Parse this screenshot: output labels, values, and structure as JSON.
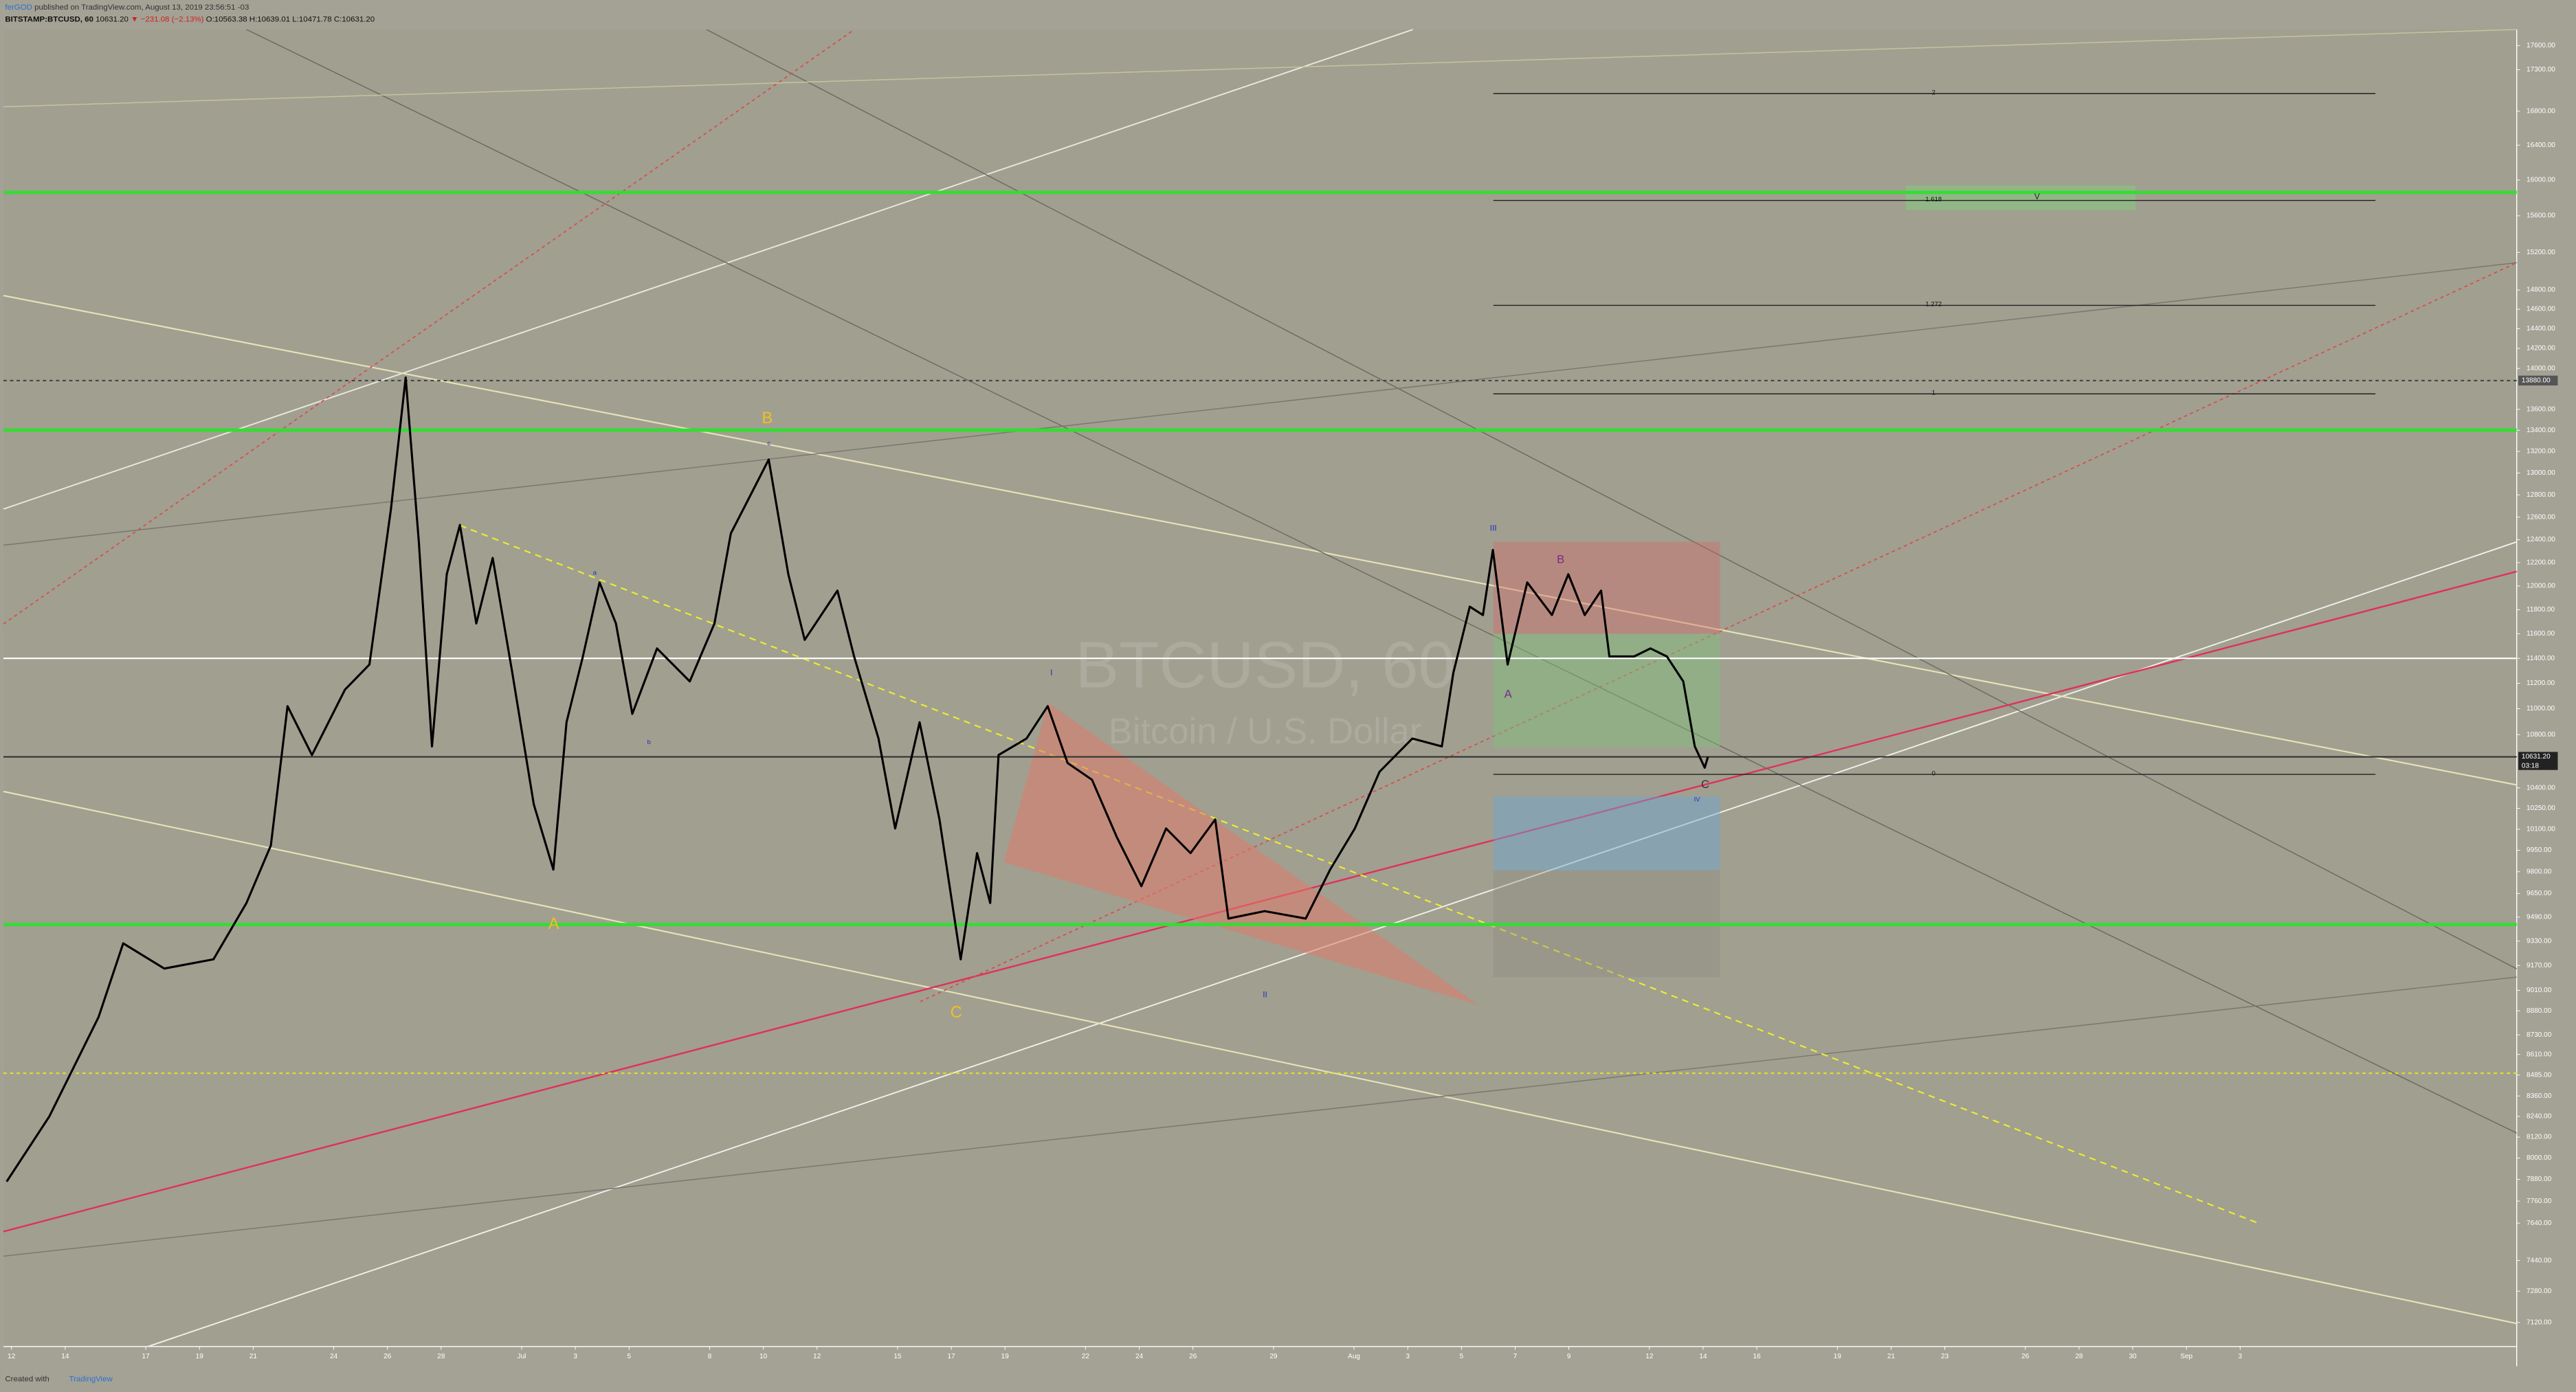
{
  "header": {
    "author": "ferGOD",
    "published": " published on TradingView.com, August 13, 2019 23:56:51 -03",
    "symbol": "BITSTAMP:BTCUSD, 60",
    "last": "10631.20",
    "change": "▼ −231.08 (−2.13%)",
    "ohlc": "O:10563.38 H:10639.01 L:10471.78 C:10631.20"
  },
  "footer": {
    "created": "Created with",
    "brand": "TradingView"
  },
  "watermark": {
    "symbol": "BTCUSD, 60",
    "description": "Bitcoin / U.S. Dollar"
  },
  "chart_data": {
    "type": "line",
    "log_scale": true,
    "x": [
      11.82,
      13.41,
      15.24,
      16.16,
      17.69,
      19.52,
      20.75,
      21.66,
      22.28,
      23.19,
      24.42,
      25.33,
      26.13,
      26.68,
      27.17,
      27.66,
      28.21,
      28.7,
      29.31,
      29.92,
      30.65,
      31.45,
      32.18,
      32.67,
      33.28,
      33.9,
      34.51,
      35.12,
      36.04,
      37.26,
      38.18,
      38.79,
      39.58,
      40.2,
      40.93,
      41.54,
      42.76,
      43.38,
      44.29,
      44.91,
      45.82,
      46.56,
      47.35,
      47.96,
      48.45,
      48.76,
      49.8,
      50.59,
      51.33,
      52.24,
      53.16,
      54.08,
      55.0,
      55.91,
      56.83,
      57.32,
      58.67,
      60.2,
      61.11,
      62.03,
      62.95,
      64.17,
      65.27,
      65.7,
      66.31,
      66.8,
      67.17,
      67.72,
      68.45,
      69.37,
      69.98,
      70.59,
      71.2,
      71.51,
      72.43,
      73.04,
      73.65,
      74.26,
      74.69,
      75.06,
      75.18
    ],
    "series": [
      {
        "name": "BTCUSD",
        "color": "#000000",
        "values": [
          7868,
          8240,
          8840,
          9315,
          9150,
          9210,
          9585,
          9985,
          11020,
          10645,
          11150,
          11350,
          12670,
          13910,
          12380,
          10710,
          12100,
          12530,
          11685,
          12240,
          11285,
          10280,
          9815,
          10895,
          11415,
          12030,
          11685,
          10960,
          11480,
          11215,
          11685,
          12455,
          12825,
          13125,
          12100,
          11550,
          11960,
          11415,
          10770,
          10105,
          10895,
          10170,
          9210,
          9930,
          9585,
          10645,
          10770,
          11020,
          10585,
          10460,
          10045,
          9700,
          10105,
          9930,
          10170,
          9480,
          9530,
          9480,
          9815,
          10105,
          10520,
          10770,
          10710,
          11285,
          11825,
          11755,
          12310,
          11350,
          12030,
          11755,
          12100,
          11755,
          11960,
          11415,
          11415,
          11480,
          11415,
          11215,
          10710,
          10550,
          10631.2
        ]
      }
    ],
    "xlim": [
      11.7,
      105.3
    ],
    "xticks": [
      {
        "value": 12,
        "label": "12"
      },
      {
        "value": 14,
        "label": "14"
      },
      {
        "value": 17,
        "label": "17"
      },
      {
        "value": 19,
        "label": "19"
      },
      {
        "value": 21,
        "label": "21"
      },
      {
        "value": 24,
        "label": "24"
      },
      {
        "value": 26,
        "label": "26"
      },
      {
        "value": 28,
        "label": "28"
      },
      {
        "value": 31,
        "label": "Jul"
      },
      {
        "value": 33,
        "label": "3"
      },
      {
        "value": 35,
        "label": "5"
      },
      {
        "value": 38,
        "label": "8"
      },
      {
        "value": 40,
        "label": "10"
      },
      {
        "value": 42,
        "label": "12"
      },
      {
        "value": 45,
        "label": "15"
      },
      {
        "value": 47,
        "label": "17"
      },
      {
        "value": 49,
        "label": "19"
      },
      {
        "value": 52,
        "label": "22"
      },
      {
        "value": 54,
        "label": "24"
      },
      {
        "value": 56,
        "label": "26"
      },
      {
        "value": 59,
        "label": "29"
      },
      {
        "value": 62,
        "label": "Aug"
      },
      {
        "value": 64,
        "label": "3"
      },
      {
        "value": 66,
        "label": "5"
      },
      {
        "value": 68,
        "label": "7"
      },
      {
        "value": 70,
        "label": "9"
      },
      {
        "value": 73,
        "label": "12"
      },
      {
        "value": 75,
        "label": "14"
      },
      {
        "value": 77,
        "label": "16"
      },
      {
        "value": 80,
        "label": "19"
      },
      {
        "value": 82,
        "label": "21"
      },
      {
        "value": 84,
        "label": "23"
      },
      {
        "value": 87,
        "label": "26"
      },
      {
        "value": 89,
        "label": "28"
      },
      {
        "value": 91,
        "label": "30"
      },
      {
        "value": 93,
        "label": "Sep"
      },
      {
        "value": 95,
        "label": "3"
      }
    ],
    "ylim": [
      7000,
      17800
    ],
    "yticks": [
      {
        "value": 7120,
        "label": "7120.00"
      },
      {
        "value": 7280,
        "label": "7280.00"
      },
      {
        "value": 7440,
        "label": "7440.00"
      },
      {
        "value": 7640,
        "label": "7640.00"
      },
      {
        "value": 7760,
        "label": "7760.00"
      },
      {
        "value": 7880,
        "label": "7880.00"
      },
      {
        "value": 8000,
        "label": "8000.00"
      },
      {
        "value": 8120,
        "label": "8120.00"
      },
      {
        "value": 8240,
        "label": "8240.00"
      },
      {
        "value": 8360,
        "label": "8360.00"
      },
      {
        "value": 8485,
        "label": "8485.00"
      },
      {
        "value": 8610,
        "label": "8610.00"
      },
      {
        "value": 8730,
        "label": "8730.00"
      },
      {
        "value": 8880,
        "label": "8880.00"
      },
      {
        "value": 9010,
        "label": "9010.00"
      },
      {
        "value": 9170,
        "label": "9170.00"
      },
      {
        "value": 9330,
        "label": "9330.00"
      },
      {
        "value": 9490,
        "label": "9490.00"
      },
      {
        "value": 9650,
        "label": "9650.00"
      },
      {
        "value": 9800,
        "label": "9800.00"
      },
      {
        "value": 9950,
        "label": "9950.00"
      },
      {
        "value": 10100,
        "label": "10100.00"
      },
      {
        "value": 10250,
        "label": "10250.00"
      },
      {
        "value": 10400,
        "label": "10400.00"
      },
      {
        "value": 10800,
        "label": "10800.00"
      },
      {
        "value": 11000,
        "label": "11000.00"
      },
      {
        "value": 11200,
        "label": "11200.00"
      },
      {
        "value": 11400,
        "label": "11400.00"
      },
      {
        "value": 11600,
        "label": "11600.00"
      },
      {
        "value": 11800,
        "label": "11800.00"
      },
      {
        "value": 12000,
        "label": "12000.00"
      },
      {
        "value": 12200,
        "label": "12200.00"
      },
      {
        "value": 12400,
        "label": "12400.00"
      },
      {
        "value": 12600,
        "label": "12600.00"
      },
      {
        "value": 12800,
        "label": "12800.00"
      },
      {
        "value": 13000,
        "label": "13000.00"
      },
      {
        "value": 13200,
        "label": "13200.00"
      },
      {
        "value": 13400,
        "label": "13400.00"
      },
      {
        "value": 13600,
        "label": "13600.00"
      },
      {
        "value": 14000,
        "label": "14000.00"
      },
      {
        "value": 14200,
        "label": "14200.00"
      },
      {
        "value": 14400,
        "label": "14400.00"
      },
      {
        "value": 14600,
        "label": "14600.00"
      },
      {
        "value": 14800,
        "label": "14800.00"
      },
      {
        "value": 15200,
        "label": "15200.00"
      },
      {
        "value": 15600,
        "label": "15600.00"
      },
      {
        "value": 16000,
        "label": "16000.00"
      },
      {
        "value": 16400,
        "label": "16400.00"
      },
      {
        "value": 16800,
        "label": "16800.00"
      },
      {
        "value": 17300,
        "label": "17300.00"
      },
      {
        "value": 17600,
        "label": "17600.00"
      }
    ],
    "hlines": [
      {
        "value": 15860,
        "color": "#33dd33",
        "style": "solid"
      },
      {
        "value": 13400,
        "color": "#33dd33",
        "style": "solid"
      },
      {
        "value": 9440,
        "color": "#33dd33",
        "style": "solid"
      },
      {
        "value": 11400,
        "color": "#ffffff",
        "style": "solid"
      },
      {
        "value": 10631.2,
        "color": "#333333",
        "style": "solid"
      },
      {
        "value": 13880,
        "color": "#444444",
        "style": "dashed"
      },
      {
        "value": 8496,
        "color": "#dddd33",
        "style": "dashed"
      }
    ],
    "price_labels": [
      {
        "value": 10631.2,
        "label": "10631.20",
        "sub": "03:18"
      },
      {
        "value": 13880,
        "label": "13880.00"
      }
    ],
    "fib": {
      "ratios": [
        "2",
        "1.618",
        "1.272",
        "1",
        "0"
      ],
      "prices": [
        17010,
        15770,
        14640,
        13750,
        10500
      ]
    },
    "wave_labels": [
      "B",
      "A",
      "C",
      "III",
      "B",
      "A",
      "C",
      "IV",
      "I",
      "II",
      "V",
      "c",
      "a",
      "b"
    ]
  }
}
